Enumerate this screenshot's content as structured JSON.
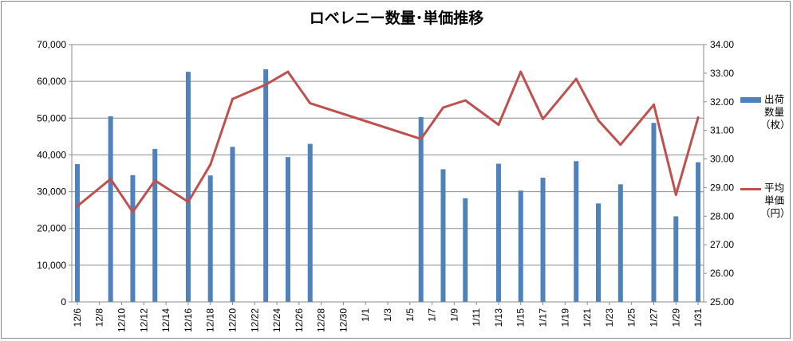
{
  "chart_data": {
    "type": "bar+line",
    "title": "ロベレニー数量･単価推移",
    "categories": [
      "12/6",
      "12/7",
      "12/8",
      "12/9",
      "12/10",
      "12/11",
      "12/12",
      "12/13",
      "12/14",
      "12/15",
      "12/16",
      "12/17",
      "12/18",
      "12/19",
      "12/20",
      "12/21",
      "12/22",
      "12/23",
      "12/24",
      "12/25",
      "12/26",
      "12/27",
      "12/28",
      "12/29",
      "12/30",
      "12/31",
      "1/1",
      "1/2",
      "1/3",
      "1/4",
      "1/5",
      "1/6",
      "1/7",
      "1/8",
      "1/9",
      "1/10",
      "1/11",
      "1/12",
      "1/13",
      "1/14",
      "1/15",
      "1/16",
      "1/17",
      "1/18",
      "1/19",
      "1/20",
      "1/21",
      "1/22",
      "1/23",
      "1/24",
      "1/25",
      "1/26",
      "1/27",
      "1/28",
      "1/29",
      "1/30",
      "1/31"
    ],
    "x_tick_labels": [
      "12/6",
      "12/8",
      "12/10",
      "12/12",
      "12/14",
      "12/16",
      "12/18",
      "12/20",
      "12/22",
      "12/24",
      "12/26",
      "12/28",
      "12/30",
      "1/1",
      "1/3",
      "1/5",
      "1/7",
      "1/9",
      "1/11",
      "1/13",
      "1/15",
      "1/17",
      "1/19",
      "1/21",
      "1/23",
      "1/25",
      "1/27",
      "1/29",
      "1/31"
    ],
    "y_left": {
      "ylim": [
        0,
        70000
      ],
      "ticks": [
        "0",
        "10,000",
        "20,000",
        "30,000",
        "40,000",
        "50,000",
        "60,000",
        "70,000"
      ]
    },
    "y_right": {
      "ylim": [
        25.0,
        34.0
      ],
      "ticks": [
        "25.00",
        "26.00",
        "27.00",
        "28.00",
        "29.00",
        "30.00",
        "31.00",
        "32.00",
        "33.00",
        "34.00"
      ]
    },
    "grid": "horizontal",
    "legend_position": "right",
    "series": [
      {
        "name": "出荷数量（枚）",
        "legend_lines": [
          "出荷",
          "数量",
          "（枚）"
        ],
        "type": "bar",
        "axis": "left",
        "color": "#4f81bd",
        "points": [
          {
            "x": "12/6",
            "y": 37500
          },
          {
            "x": "12/9",
            "y": 50500
          },
          {
            "x": "12/11",
            "y": 34500
          },
          {
            "x": "12/13",
            "y": 41600
          },
          {
            "x": "12/16",
            "y": 62600
          },
          {
            "x": "12/18",
            "y": 34400
          },
          {
            "x": "12/20",
            "y": 42200
          },
          {
            "x": "12/23",
            "y": 63300
          },
          {
            "x": "12/25",
            "y": 39400
          },
          {
            "x": "12/27",
            "y": 43000
          },
          {
            "x": "1/6",
            "y": 50300
          },
          {
            "x": "1/8",
            "y": 36100
          },
          {
            "x": "1/10",
            "y": 28200
          },
          {
            "x": "1/13",
            "y": 37600
          },
          {
            "x": "1/15",
            "y": 30300
          },
          {
            "x": "1/17",
            "y": 33800
          },
          {
            "x": "1/20",
            "y": 38300
          },
          {
            "x": "1/22",
            "y": 26800
          },
          {
            "x": "1/24",
            "y": 32000
          },
          {
            "x": "1/27",
            "y": 48700
          },
          {
            "x": "1/29",
            "y": 23300
          },
          {
            "x": "1/31",
            "y": 38000
          }
        ]
      },
      {
        "name": "平均単価（円）",
        "legend_lines": [
          "平均",
          "単価",
          "（円）"
        ],
        "type": "line",
        "axis": "right",
        "color": "#c0504d",
        "points": [
          {
            "x": "12/6",
            "y": 28.35
          },
          {
            "x": "12/9",
            "y": 29.3
          },
          {
            "x": "12/11",
            "y": 28.15
          },
          {
            "x": "12/13",
            "y": 29.25
          },
          {
            "x": "12/16",
            "y": 28.5
          },
          {
            "x": "12/18",
            "y": 29.8
          },
          {
            "x": "12/20",
            "y": 32.1
          },
          {
            "x": "12/23",
            "y": 32.6
          },
          {
            "x": "12/25",
            "y": 33.05
          },
          {
            "x": "12/27",
            "y": 31.95
          },
          {
            "x": "1/6",
            "y": 30.7
          },
          {
            "x": "1/8",
            "y": 31.8
          },
          {
            "x": "1/10",
            "y": 32.05
          },
          {
            "x": "1/13",
            "y": 31.2
          },
          {
            "x": "1/15",
            "y": 33.05
          },
          {
            "x": "1/17",
            "y": 31.4
          },
          {
            "x": "1/20",
            "y": 32.8
          },
          {
            "x": "1/22",
            "y": 31.35
          },
          {
            "x": "1/24",
            "y": 30.5
          },
          {
            "x": "1/27",
            "y": 31.9
          },
          {
            "x": "1/29",
            "y": 28.75
          },
          {
            "x": "1/31",
            "y": 31.45
          }
        ]
      }
    ]
  }
}
